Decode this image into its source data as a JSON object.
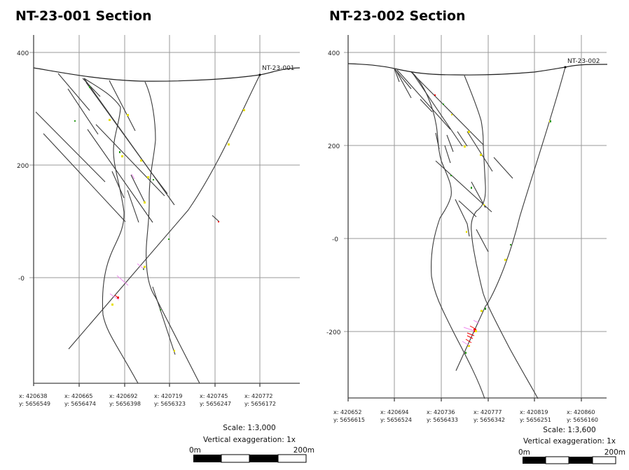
{
  "sections": [
    {
      "title": "NT-23-001 Section",
      "hole_label": "NT-23-001",
      "elevation_labels": [
        "400",
        "200",
        "-0"
      ],
      "coords": [
        {
          "x": "x: 420638",
          "y": "y: 5656549"
        },
        {
          "x": "x: 420665",
          "y": "y: 5656474"
        },
        {
          "x": "x: 420692",
          "y": "y: 5656398"
        },
        {
          "x": "x: 420719",
          "y": "y: 5656323"
        },
        {
          "x": "x: 420745",
          "y": "y: 5656247"
        },
        {
          "x": "x: 420772",
          "y": "y: 5656172"
        }
      ],
      "scale": "Scale: 1:3,000",
      "vertical_exaggeration": "Vertical exaggeration: 1x",
      "bar_start": "0m",
      "bar_end": "200m"
    },
    {
      "title": "NT-23-002 Section",
      "hole_label": "NT-23-002",
      "elevation_labels": [
        "400",
        "200",
        "-0",
        "-200"
      ],
      "coords": [
        {
          "x": "x: 420652",
          "y": "y: 5656615"
        },
        {
          "x": "x: 420694",
          "y": "y: 5656524"
        },
        {
          "x": "x: 420736",
          "y": "y: 5656433"
        },
        {
          "x": "x: 420777",
          "y": "y: 5656342"
        },
        {
          "x": "x: 420819",
          "y": "y: 5656251"
        },
        {
          "x": "x: 420860",
          "y": "y: 5656160"
        }
      ],
      "scale": "Scale: 1:3,600",
      "vertical_exaggeration": "Vertical exaggeration: 1x",
      "bar_start": "0m",
      "bar_end": "200m"
    }
  ],
  "colors": {
    "trace": "#3a3a3a",
    "grid": "#9a9a9a",
    "assay_high": "#e00000",
    "assay_mid": "#e8e000",
    "assay_low": "#2a9a1a",
    "assay_pink": "#f08cf0"
  }
}
